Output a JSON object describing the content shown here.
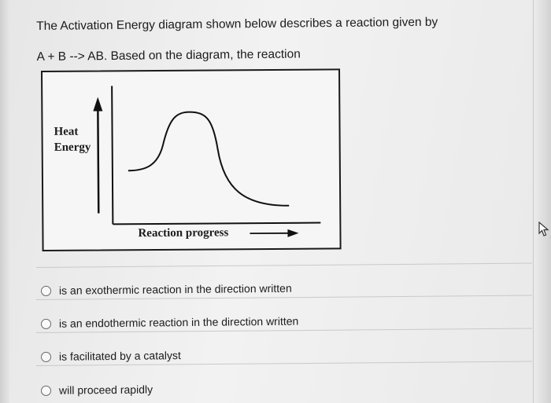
{
  "question": {
    "line1": "The Activation Energy diagram shown below describes a reaction given by",
    "line2": "A + B --> AB.  Based on the diagram, the reaction"
  },
  "diagram": {
    "y_label_line1": "Heat",
    "y_label_line2": "Energy",
    "x_label": "Reaction progress"
  },
  "options": [
    {
      "label": "is an exothermic reaction in the direction written",
      "selected": false
    },
    {
      "label": "is an endothermic reaction in the direction written",
      "selected": false
    },
    {
      "label": "is facilitated by a catalyst",
      "selected": false
    },
    {
      "label": "will proceed rapidly",
      "selected": false
    }
  ],
  "icons": {
    "cursor": "mouse-pointer-icon"
  }
}
